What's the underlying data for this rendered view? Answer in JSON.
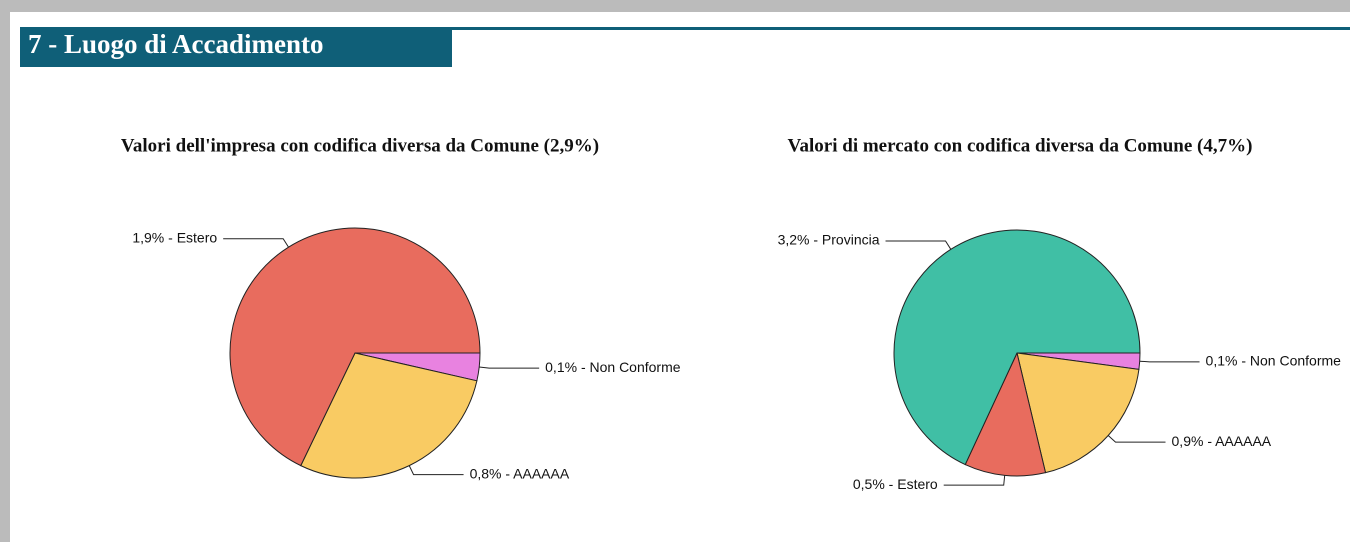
{
  "header": {
    "title": "7 - Luogo di Accadimento"
  },
  "chart_data": [
    {
      "type": "pie",
      "title": "Valori dell'impresa con codifica diversa da Comune (2,9%)",
      "values": [
        0.1,
        0.8,
        1.9
      ],
      "value_labels": [
        "0,1% - Non Conforme",
        "0,8% - AAAAAA",
        "1,9% - Estero"
      ],
      "colors": [
        "#e882e0",
        "#f9cb63",
        "#e86c5e"
      ]
    },
    {
      "type": "pie",
      "title": "Valori di mercato con codifica diversa da Comune (4,7%)",
      "values": [
        0.1,
        0.9,
        0.5,
        3.2
      ],
      "value_labels": [
        "0,1% - Non Conforme",
        "0,9% - AAAAAA",
        "0,5% - Estero",
        "3,2% - Provincia"
      ],
      "colors": [
        "#e882e0",
        "#f9cb63",
        "#e86c5e",
        "#40bfa5"
      ]
    }
  ]
}
